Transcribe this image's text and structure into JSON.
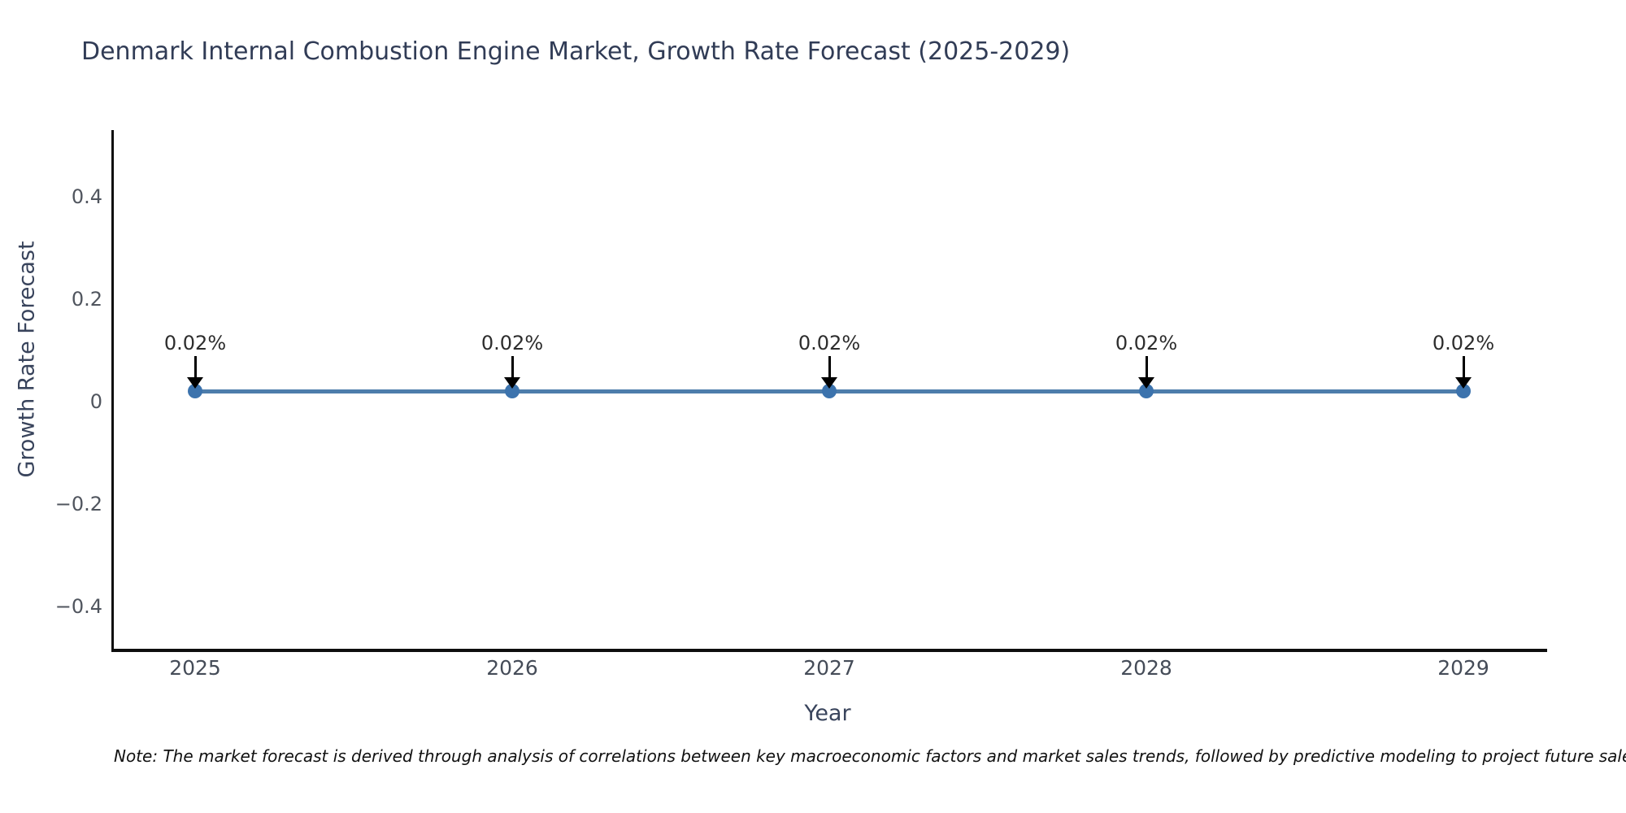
{
  "note": "Note: The market forecast is derived through analysis of correlations between key macroeconomic factors and market sales trends, followed by predictive modeling to project future sales.",
  "chart_data": {
    "type": "line",
    "title": "Denmark Internal Combustion Engine Market, Growth Rate Forecast (2025-2029)",
    "xlabel": "Year",
    "ylabel": "Growth Rate Forecast",
    "x": [
      "2025",
      "2026",
      "2027",
      "2028",
      "2029"
    ],
    "series": [
      {
        "name": "Growth Rate Forecast",
        "values": [
          0.02,
          0.02,
          0.02,
          0.02,
          0.02
        ]
      }
    ],
    "point_labels": [
      "0.02%",
      "0.02%",
      "0.02%",
      "0.02%",
      "0.02%"
    ],
    "yticks": [
      {
        "label": "0.4",
        "value": 0.4
      },
      {
        "label": "0.2",
        "value": 0.2
      },
      {
        "label": "0",
        "value": 0
      },
      {
        "label": "−0.2",
        "value": -0.2
      },
      {
        "label": "−0.4",
        "value": -0.4
      }
    ],
    "ylim": [
      -0.49,
      0.53
    ],
    "grid": false,
    "legend_position": "none",
    "line_color": "#4d7dab",
    "marker_color": "#3c73ad",
    "arrow_color": "#000000"
  }
}
